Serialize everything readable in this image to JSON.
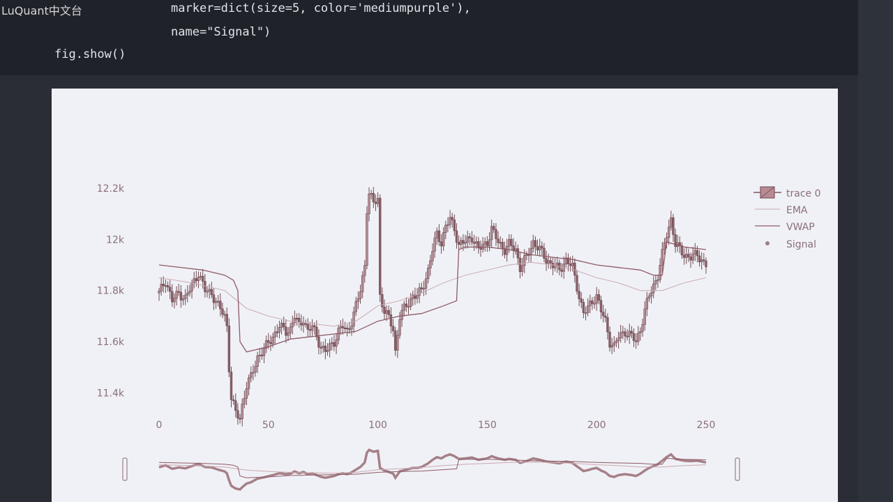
{
  "watermark": "LuQuant中文台",
  "code": {
    "line1": "marker=dict(size=5, color='mediumpurple'),",
    "line2": "name=\"Signal\")",
    "line3": "fig.show()"
  },
  "chart_data": {
    "type": "candlestick",
    "x_ticks": [
      "0",
      "50",
      "100",
      "150",
      "200",
      "250"
    ],
    "y_ticks": [
      "11.4k",
      "11.6k",
      "11.8k",
      "12k",
      "12.2k"
    ],
    "xlim": [
      0,
      250
    ],
    "ylim": [
      11300,
      12200
    ],
    "legend_position": "top-right",
    "legend": [
      "trace 0",
      "EMA",
      "VWAP",
      "Signal"
    ],
    "colors": {
      "candles": "#8a6068",
      "ema": "#c9a8b0",
      "vwap": "#8e5a66",
      "signal": "#9a7e86",
      "ticks": "#8a6e78"
    },
    "price_path": [
      [
        0,
        11790
      ],
      [
        3,
        11840
      ],
      [
        6,
        11760
      ],
      [
        9,
        11790
      ],
      [
        12,
        11770
      ],
      [
        15,
        11820
      ],
      [
        18,
        11870
      ],
      [
        21,
        11800
      ],
      [
        24,
        11790
      ],
      [
        27,
        11740
      ],
      [
        30,
        11700
      ],
      [
        31,
        11660
      ],
      [
        32,
        11500
      ],
      [
        33,
        11380
      ],
      [
        35,
        11320
      ],
      [
        37,
        11300
      ],
      [
        38,
        11350
      ],
      [
        40,
        11430
      ],
      [
        42,
        11460
      ],
      [
        45,
        11540
      ],
      [
        48,
        11570
      ],
      [
        52,
        11620
      ],
      [
        55,
        11660
      ],
      [
        58,
        11640
      ],
      [
        60,
        11650
      ],
      [
        62,
        11700
      ],
      [
        64,
        11660
      ],
      [
        66,
        11690
      ],
      [
        68,
        11640
      ],
      [
        70,
        11660
      ],
      [
        72,
        11620
      ],
      [
        74,
        11580
      ],
      [
        76,
        11560
      ],
      [
        78,
        11580
      ],
      [
        80,
        11600
      ],
      [
        82,
        11640
      ],
      [
        84,
        11660
      ],
      [
        86,
        11640
      ],
      [
        88,
        11680
      ],
      [
        90,
        11740
      ],
      [
        92,
        11800
      ],
      [
        94,
        11900
      ],
      [
        95,
        12120
      ],
      [
        96,
        12180
      ],
      [
        98,
        12140
      ],
      [
        100,
        12160
      ],
      [
        101,
        11780
      ],
      [
        103,
        11720
      ],
      [
        105,
        11690
      ],
      [
        107,
        11650
      ],
      [
        108,
        11560
      ],
      [
        110,
        11700
      ],
      [
        113,
        11740
      ],
      [
        116,
        11780
      ],
      [
        118,
        11780
      ],
      [
        120,
        11800
      ],
      [
        123,
        11880
      ],
      [
        125,
        11960
      ],
      [
        127,
        12020
      ],
      [
        129,
        11990
      ],
      [
        131,
        12050
      ],
      [
        133,
        12080
      ],
      [
        135,
        12040
      ],
      [
        137,
        11980
      ],
      [
        140,
        11990
      ],
      [
        143,
        12010
      ],
      [
        146,
        11960
      ],
      [
        150,
        11990
      ],
      [
        152,
        12040
      ],
      [
        155,
        11990
      ],
      [
        158,
        11960
      ],
      [
        160,
        11980
      ],
      [
        163,
        11960
      ],
      [
        165,
        11890
      ],
      [
        168,
        11930
      ],
      [
        171,
        11990
      ],
      [
        174,
        11960
      ],
      [
        177,
        11920
      ],
      [
        180,
        11900
      ],
      [
        183,
        11880
      ],
      [
        186,
        11920
      ],
      [
        189,
        11890
      ],
      [
        190,
        11850
      ],
      [
        192,
        11780
      ],
      [
        194,
        11710
      ],
      [
        196,
        11730
      ],
      [
        198,
        11760
      ],
      [
        200,
        11780
      ],
      [
        202,
        11720
      ],
      [
        204,
        11680
      ],
      [
        206,
        11600
      ],
      [
        208,
        11580
      ],
      [
        210,
        11620
      ],
      [
        213,
        11640
      ],
      [
        216,
        11620
      ],
      [
        218,
        11600
      ],
      [
        220,
        11650
      ],
      [
        222,
        11720
      ],
      [
        224,
        11780
      ],
      [
        226,
        11820
      ],
      [
        228,
        11860
      ],
      [
        230,
        11940
      ],
      [
        232,
        12020
      ],
      [
        234,
        12080
      ],
      [
        236,
        11980
      ],
      [
        238,
        11960
      ],
      [
        240,
        11940
      ],
      [
        243,
        11930
      ],
      [
        246,
        11940
      ],
      [
        248,
        11920
      ],
      [
        250,
        11900
      ]
    ],
    "ema_path": [
      [
        0,
        11850
      ],
      [
        15,
        11830
      ],
      [
        30,
        11800
      ],
      [
        40,
        11730
      ],
      [
        50,
        11700
      ],
      [
        60,
        11680
      ],
      [
        70,
        11670
      ],
      [
        80,
        11660
      ],
      [
        90,
        11680
      ],
      [
        100,
        11740
      ],
      [
        110,
        11760
      ],
      [
        120,
        11790
      ],
      [
        130,
        11830
      ],
      [
        140,
        11860
      ],
      [
        150,
        11880
      ],
      [
        160,
        11900
      ],
      [
        170,
        11910
      ],
      [
        180,
        11900
      ],
      [
        190,
        11880
      ],
      [
        200,
        11850
      ],
      [
        210,
        11830
      ],
      [
        220,
        11800
      ],
      [
        230,
        11800
      ],
      [
        240,
        11830
      ],
      [
        250,
        11850
      ]
    ],
    "vwap_path": [
      [
        0,
        11900
      ],
      [
        20,
        11880
      ],
      [
        30,
        11860
      ],
      [
        34,
        11840
      ],
      [
        36,
        11800
      ],
      [
        37,
        11600
      ],
      [
        40,
        11560
      ],
      [
        50,
        11580
      ],
      [
        60,
        11610
      ],
      [
        70,
        11620
      ],
      [
        80,
        11630
      ],
      [
        90,
        11640
      ],
      [
        100,
        11680
      ],
      [
        110,
        11700
      ],
      [
        120,
        11710
      ],
      [
        130,
        11740
      ],
      [
        136,
        11760
      ],
      [
        137,
        11960
      ],
      [
        140,
        11970
      ],
      [
        150,
        11970
      ],
      [
        160,
        11960
      ],
      [
        170,
        11940
      ],
      [
        180,
        11930
      ],
      [
        190,
        11920
      ],
      [
        200,
        11900
      ],
      [
        210,
        11890
      ],
      [
        220,
        11880
      ],
      [
        226,
        11860
      ],
      [
        230,
        11860
      ],
      [
        232,
        11990
      ],
      [
        240,
        11970
      ],
      [
        250,
        11960
      ]
    ]
  }
}
